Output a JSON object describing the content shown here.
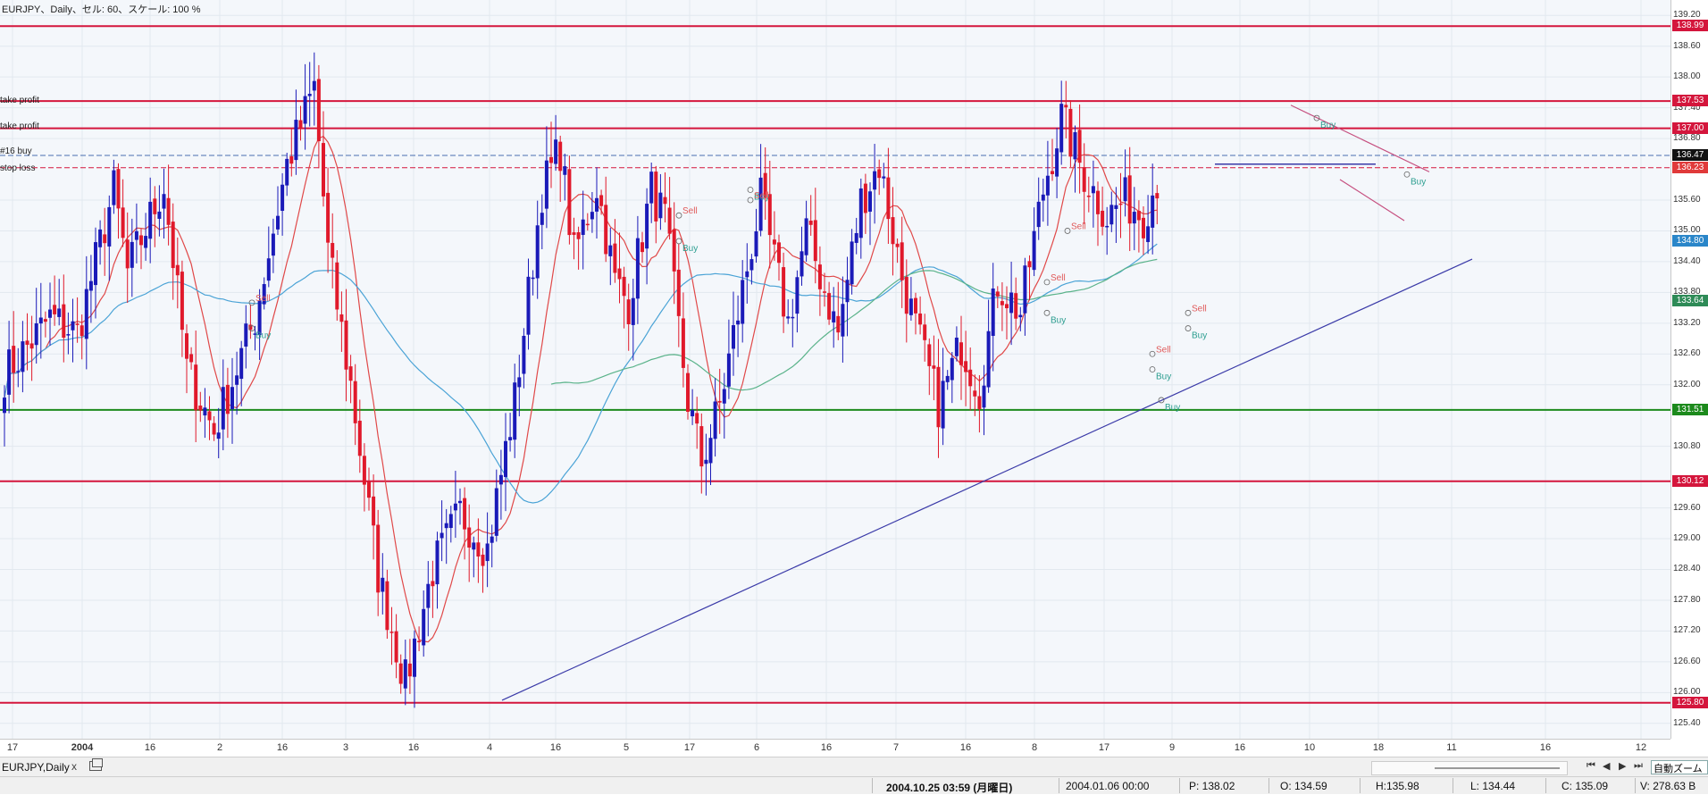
{
  "header": {
    "title": "EURJPY、Daily、セル: 60、スケール: 100 %"
  },
  "price_axis": {
    "ticks": [
      "139.20",
      "138.60",
      "138.00",
      "137.40",
      "136.80",
      "135.60",
      "135.00",
      "134.40",
      "133.80",
      "133.20",
      "132.60",
      "132.00",
      "130.80",
      "129.60",
      "129.00",
      "128.40",
      "127.80",
      "127.20",
      "126.60",
      "126.00",
      "125.40"
    ],
    "tick_values": [
      139.2,
      138.6,
      138.0,
      137.4,
      136.8,
      135.6,
      135.0,
      134.4,
      133.8,
      133.2,
      132.6,
      132.0,
      130.8,
      129.6,
      129.0,
      128.4,
      127.8,
      127.2,
      126.6,
      126.0,
      125.4
    ],
    "tags": [
      {
        "label": "138.99",
        "value": 138.99,
        "color": "#d4163c"
      },
      {
        "label": "137.53",
        "value": 137.53,
        "color": "#d4163c"
      },
      {
        "label": "137.00",
        "value": 137.0,
        "color": "#d4163c"
      },
      {
        "label": "136.47",
        "value": 136.47,
        "color": "#111111"
      },
      {
        "label": "136.23",
        "value": 136.23,
        "color": "#e03a3a"
      },
      {
        "label": "134.80",
        "value": 134.8,
        "color": "#2a86c9"
      },
      {
        "label": "133.64",
        "value": 133.64,
        "color": "#2e8b57"
      },
      {
        "label": "131.51",
        "value": 131.51,
        "color": "#1c8a1c"
      },
      {
        "label": "130.12",
        "value": 130.12,
        "color": "#d4163c"
      },
      {
        "label": "125.80",
        "value": 125.8,
        "color": "#d4163c"
      }
    ]
  },
  "time_axis": {
    "labels": [
      {
        "text": "17",
        "bold": false
      },
      {
        "text": "2004",
        "bold": true
      },
      {
        "text": "16",
        "bold": false
      },
      {
        "text": "2",
        "bold": false
      },
      {
        "text": "16",
        "bold": false
      },
      {
        "text": "3",
        "bold": false
      },
      {
        "text": "16",
        "bold": false
      },
      {
        "text": "4",
        "bold": false
      },
      {
        "text": "16",
        "bold": false
      },
      {
        "text": "5",
        "bold": false
      },
      {
        "text": "17",
        "bold": false
      },
      {
        "text": "6",
        "bold": false
      },
      {
        "text": "16",
        "bold": false
      },
      {
        "text": "7",
        "bold": false
      },
      {
        "text": "16",
        "bold": false
      },
      {
        "text": "8",
        "bold": false
      },
      {
        "text": "17",
        "bold": false
      },
      {
        "text": "9",
        "bold": false
      },
      {
        "text": "16",
        "bold": false
      },
      {
        "text": "10",
        "bold": false
      },
      {
        "text": "18",
        "bold": false
      },
      {
        "text": "11",
        "bold": false
      },
      {
        "text": "16",
        "bold": false
      },
      {
        "text": "12",
        "bold": false
      }
    ]
  },
  "annotations": {
    "take_profit_1": "take profit",
    "take_profit_2": "take profit",
    "order_label": "#16 buy",
    "stop_loss": "stop loss"
  },
  "signals": {
    "buy": "Buy",
    "sell": "Sell"
  },
  "levels": {
    "resistance_top": 138.99,
    "take_profit_1": 137.53,
    "take_profit_2": 137.0,
    "order_entry": 136.47,
    "stop_loss": 136.23,
    "support_green": 131.51,
    "support_red": 130.12,
    "support_bottom": 125.8
  },
  "tab_bar": {
    "tab_label": "EURJPY,Daily",
    "close_symbol": "x",
    "autozoom_label": "自動ズーム"
  },
  "status_bar": {
    "cursor_time": "2004.10.25 03:59 (月曜日)",
    "bar_time": "2004.01.06 00:00",
    "p": "P: 138.02",
    "o": "O: 134.59",
    "h": "H:135.98",
    "l": "L: 134.44",
    "c": "C: 135.09",
    "v": "V: 278.63 B"
  },
  "colors": {
    "bull": "#1a1ab8",
    "bear": "#e0192b",
    "ma_fast": "#e04848",
    "ma_mid": "#4aa3d6",
    "ma_slow": "#5ab38a",
    "trendline": "#3a3aa8",
    "level_red": "#d4163c",
    "level_green": "#1c8a1c"
  },
  "chart_data": {
    "type": "candlestick",
    "symbol": "EURJPY",
    "timeframe": "Daily",
    "y_range": [
      125.1,
      139.5
    ],
    "anchors": [
      {
        "i": 0,
        "p": 132.2
      },
      {
        "i": 10,
        "p": 133.3
      },
      {
        "i": 16,
        "p": 133.0
      },
      {
        "i": 24,
        "p": 135.8
      },
      {
        "i": 27,
        "p": 134.2
      },
      {
        "i": 35,
        "p": 135.9
      },
      {
        "i": 40,
        "p": 132.3
      },
      {
        "i": 46,
        "p": 131.1
      },
      {
        "i": 55,
        "p": 133.3
      },
      {
        "i": 62,
        "p": 136.3
      },
      {
        "i": 68,
        "p": 137.8
      },
      {
        "i": 71,
        "p": 134.6
      },
      {
        "i": 76,
        "p": 132.0
      },
      {
        "i": 82,
        "p": 128.3
      },
      {
        "i": 88,
        "p": 126.2
      },
      {
        "i": 94,
        "p": 128.4
      },
      {
        "i": 100,
        "p": 129.5
      },
      {
        "i": 106,
        "p": 128.8
      },
      {
        "i": 112,
        "p": 131.7
      },
      {
        "i": 118,
        "p": 135.8
      },
      {
        "i": 122,
        "p": 136.6
      },
      {
        "i": 125,
        "p": 134.5
      },
      {
        "i": 130,
        "p": 135.9
      },
      {
        "i": 134,
        "p": 134.0
      },
      {
        "i": 137,
        "p": 133.6
      },
      {
        "i": 142,
        "p": 135.8
      },
      {
        "i": 145,
        "p": 135.2
      },
      {
        "i": 150,
        "p": 131.7
      },
      {
        "i": 153,
        "p": 130.5
      },
      {
        "i": 157,
        "p": 131.6
      },
      {
        "i": 161,
        "p": 133.4
      },
      {
        "i": 166,
        "p": 135.6
      },
      {
        "i": 172,
        "p": 133.2
      },
      {
        "i": 176,
        "p": 135.0
      },
      {
        "i": 183,
        "p": 133.0
      },
      {
        "i": 188,
        "p": 135.6
      },
      {
        "i": 192,
        "p": 136.3
      },
      {
        "i": 197,
        "p": 134.1
      },
      {
        "i": 200,
        "p": 133.1
      },
      {
        "i": 205,
        "p": 131.6
      },
      {
        "i": 210,
        "p": 132.8
      },
      {
        "i": 214,
        "p": 131.9
      },
      {
        "i": 218,
        "p": 134.0
      },
      {
        "i": 223,
        "p": 133.4
      },
      {
        "i": 228,
        "p": 135.8
      },
      {
        "i": 232,
        "p": 137.2
      },
      {
        "i": 237,
        "p": 136.1
      },
      {
        "i": 242,
        "p": 135.3
      },
      {
        "i": 246,
        "p": 135.6
      },
      {
        "i": 250,
        "p": 135.3
      },
      {
        "i": 253,
        "p": 136.0
      }
    ],
    "series": [
      {
        "name": "fast MA"
      },
      {
        "name": "mid MA"
      },
      {
        "name": "slow MA"
      }
    ]
  }
}
